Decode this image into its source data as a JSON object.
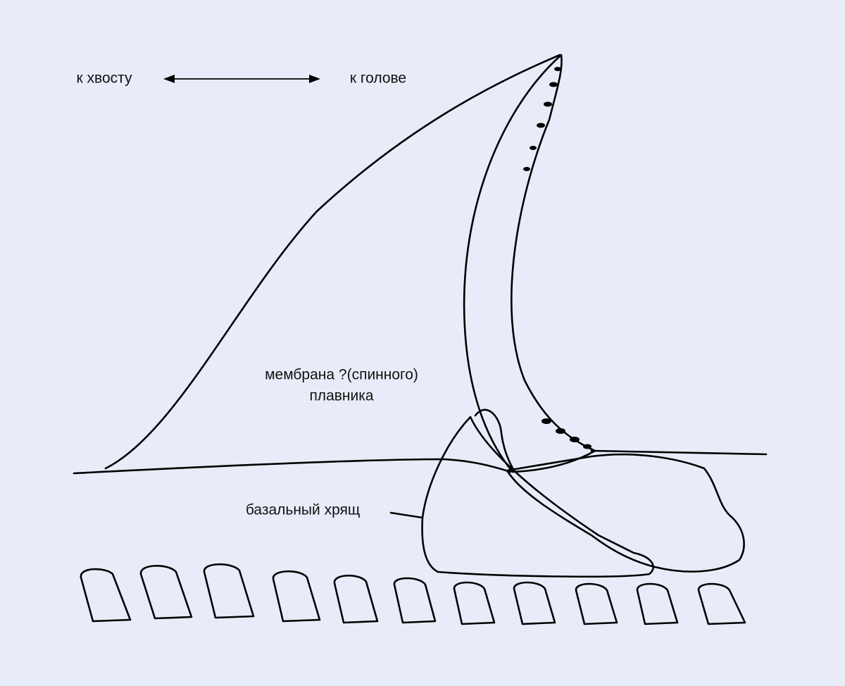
{
  "direction": {
    "tail": "к хвосту",
    "head": "к голове"
  },
  "membrane_label": [
    "мембрана ?(спинного)",
    "плавника"
  ],
  "cartilage_label": "базальный хрящ"
}
